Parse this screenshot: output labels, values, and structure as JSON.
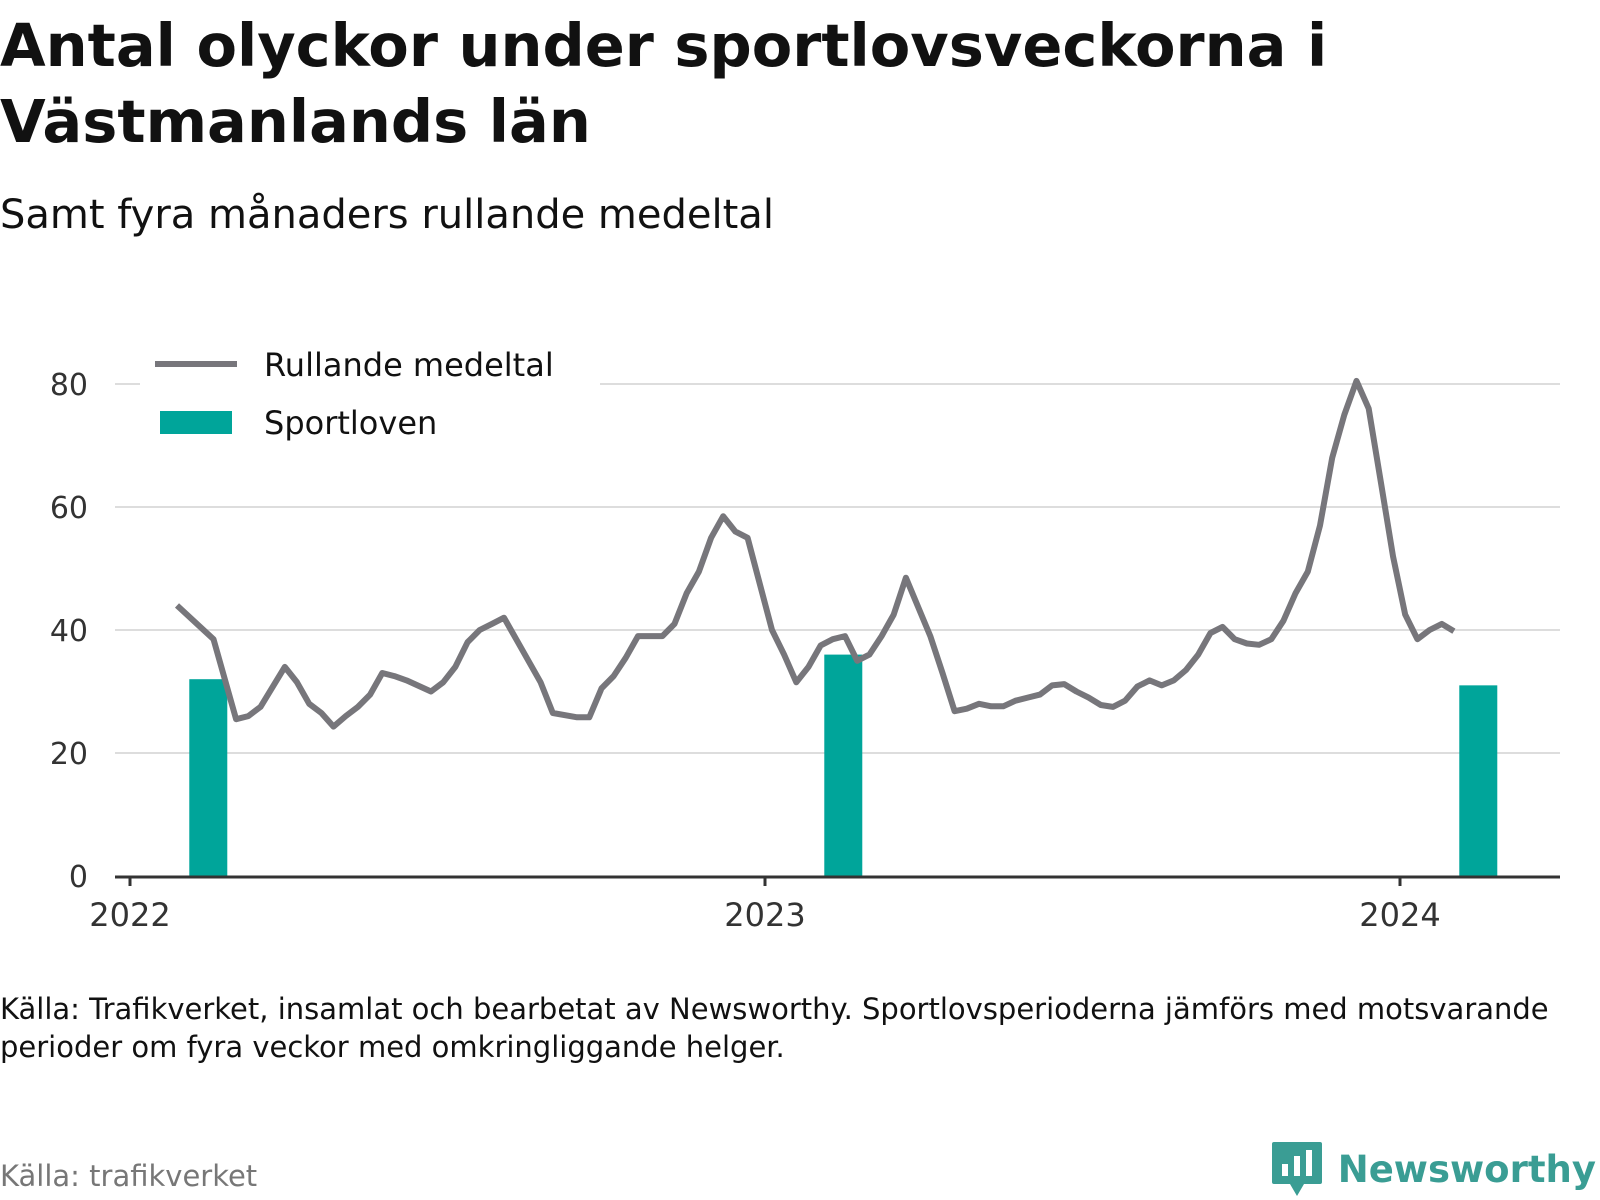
{
  "title": "Antal olyckor under sportlovsveckorna i Västmanlands län",
  "subtitle": "Samt fyra månaders rullande medeltal",
  "note": "Källa: Trafikverket, insamlat och bearbetat av Newsworthy. Sportlovsperioderna jämförs med motsvarande perioder om fyra veckor med omkringliggande helger.",
  "source": "Källa: trafikverket",
  "brand": "Newsworthy",
  "colors": {
    "line": "#77767b",
    "bar": "#00a59a",
    "grid": "#dddddd",
    "axis": "#333333",
    "brand": "#3a9d94"
  },
  "chart_data": {
    "type": "bar+line",
    "ylim": [
      0,
      80
    ],
    "yticks": [
      0,
      20,
      40,
      60,
      80
    ],
    "xlim": [
      "2022-01",
      "2024-04"
    ],
    "xticks": [
      {
        "label": "2022",
        "date": "2022-01-01"
      },
      {
        "label": "2023",
        "date": "2023-01-01"
      },
      {
        "label": "2024",
        "date": "2024-01-01"
      }
    ],
    "grid": true,
    "legend_position": "top-left",
    "legend": {
      "line": "Rullande medeltal",
      "bar": "Sportloven"
    },
    "bars": [
      {
        "date": "2022-02-15",
        "value": 32
      },
      {
        "date": "2023-02-15",
        "value": 36
      },
      {
        "date": "2024-02-15",
        "value": 31
      }
    ],
    "line": [
      {
        "date": "2022-01-28",
        "value": 44
      },
      {
        "date": "2022-02-18",
        "value": 38.5
      },
      {
        "date": "2022-03-03",
        "value": 25.5
      },
      {
        "date": "2022-03-10",
        "value": 26
      },
      {
        "date": "2022-03-17",
        "value": 27.5
      },
      {
        "date": "2022-03-31",
        "value": 34
      },
      {
        "date": "2022-04-07",
        "value": 31.5
      },
      {
        "date": "2022-04-14",
        "value": 28
      },
      {
        "date": "2022-04-21",
        "value": 26.5
      },
      {
        "date": "2022-04-28",
        "value": 24.3
      },
      {
        "date": "2022-05-05",
        "value": 26
      },
      {
        "date": "2022-05-12",
        "value": 27.5
      },
      {
        "date": "2022-05-19",
        "value": 29.5
      },
      {
        "date": "2022-05-26",
        "value": 33
      },
      {
        "date": "2022-06-02",
        "value": 32.5
      },
      {
        "date": "2022-06-09",
        "value": 31.8
      },
      {
        "date": "2022-06-23",
        "value": 30
      },
      {
        "date": "2022-06-30",
        "value": 31.5
      },
      {
        "date": "2022-07-07",
        "value": 34
      },
      {
        "date": "2022-07-14",
        "value": 38
      },
      {
        "date": "2022-07-21",
        "value": 40
      },
      {
        "date": "2022-07-28",
        "value": 41
      },
      {
        "date": "2022-08-04",
        "value": 42
      },
      {
        "date": "2022-08-11",
        "value": 38.5
      },
      {
        "date": "2022-08-25",
        "value": 31.5
      },
      {
        "date": "2022-09-01",
        "value": 26.5
      },
      {
        "date": "2022-09-15",
        "value": 25.8
      },
      {
        "date": "2022-09-22",
        "value": 25.8
      },
      {
        "date": "2022-09-29",
        "value": 30.5
      },
      {
        "date": "2022-10-06",
        "value": 32.5
      },
      {
        "date": "2022-10-13",
        "value": 35.5
      },
      {
        "date": "2022-10-20",
        "value": 39
      },
      {
        "date": "2022-11-03",
        "value": 39
      },
      {
        "date": "2022-11-10",
        "value": 41
      },
      {
        "date": "2022-11-17",
        "value": 46
      },
      {
        "date": "2022-11-24",
        "value": 49.5
      },
      {
        "date": "2022-12-01",
        "value": 55
      },
      {
        "date": "2022-12-08",
        "value": 58.5
      },
      {
        "date": "2022-12-15",
        "value": 56
      },
      {
        "date": "2022-12-22",
        "value": 55
      },
      {
        "date": "2023-01-05",
        "value": 40
      },
      {
        "date": "2023-01-12",
        "value": 36
      },
      {
        "date": "2023-01-19",
        "value": 31.5
      },
      {
        "date": "2023-01-26",
        "value": 34
      },
      {
        "date": "2023-02-02",
        "value": 37.5
      },
      {
        "date": "2023-02-09",
        "value": 38.5
      },
      {
        "date": "2023-02-16",
        "value": 39
      },
      {
        "date": "2023-02-23",
        "value": 35
      },
      {
        "date": "2023-03-02",
        "value": 36
      },
      {
        "date": "2023-03-09",
        "value": 39
      },
      {
        "date": "2023-03-16",
        "value": 42.5
      },
      {
        "date": "2023-03-23",
        "value": 48.5
      },
      {
        "date": "2023-04-06",
        "value": 39
      },
      {
        "date": "2023-04-13",
        "value": 33
      },
      {
        "date": "2023-04-20",
        "value": 26.8
      },
      {
        "date": "2023-04-27",
        "value": 27.2
      },
      {
        "date": "2023-05-04",
        "value": 28
      },
      {
        "date": "2023-05-11",
        "value": 27.6
      },
      {
        "date": "2023-05-18",
        "value": 27.6
      },
      {
        "date": "2023-05-25",
        "value": 28.5
      },
      {
        "date": "2023-06-01",
        "value": 29
      },
      {
        "date": "2023-06-08",
        "value": 29.5
      },
      {
        "date": "2023-06-15",
        "value": 31
      },
      {
        "date": "2023-06-22",
        "value": 31.2
      },
      {
        "date": "2023-06-29",
        "value": 30
      },
      {
        "date": "2023-07-06",
        "value": 29
      },
      {
        "date": "2023-07-13",
        "value": 27.8
      },
      {
        "date": "2023-07-20",
        "value": 27.5
      },
      {
        "date": "2023-07-27",
        "value": 28.5
      },
      {
        "date": "2023-08-03",
        "value": 30.8
      },
      {
        "date": "2023-08-10",
        "value": 31.8
      },
      {
        "date": "2023-08-17",
        "value": 31
      },
      {
        "date": "2023-08-24",
        "value": 31.8
      },
      {
        "date": "2023-08-31",
        "value": 33.5
      },
      {
        "date": "2023-09-07",
        "value": 36
      },
      {
        "date": "2023-09-14",
        "value": 39.5
      },
      {
        "date": "2023-09-21",
        "value": 40.5
      },
      {
        "date": "2023-09-28",
        "value": 38.5
      },
      {
        "date": "2023-10-05",
        "value": 37.8
      },
      {
        "date": "2023-10-12",
        "value": 37.6
      },
      {
        "date": "2023-10-19",
        "value": 38.5
      },
      {
        "date": "2023-10-26",
        "value": 41.5
      },
      {
        "date": "2023-11-02",
        "value": 46
      },
      {
        "date": "2023-11-09",
        "value": 49.5
      },
      {
        "date": "2023-11-16",
        "value": 57
      },
      {
        "date": "2023-11-23",
        "value": 68
      },
      {
        "date": "2023-11-30",
        "value": 75
      },
      {
        "date": "2023-12-07",
        "value": 80.5
      },
      {
        "date": "2023-12-14",
        "value": 76
      },
      {
        "date": "2023-12-21",
        "value": 64
      },
      {
        "date": "2023-12-28",
        "value": 52
      },
      {
        "date": "2024-01-04",
        "value": 42.5
      },
      {
        "date": "2024-01-11",
        "value": 38.5
      },
      {
        "date": "2024-01-18",
        "value": 40
      },
      {
        "date": "2024-01-25",
        "value": 41
      },
      {
        "date": "2024-02-01",
        "value": 39.8
      }
    ]
  }
}
